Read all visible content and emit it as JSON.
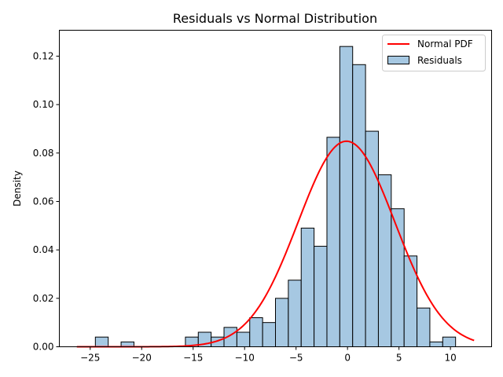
{
  "chart_data": {
    "type": "bar",
    "title": "Residuals vs Normal Distribution",
    "xlabel": "",
    "ylabel": "Density",
    "xlim": [
      -28,
      14
    ],
    "ylim": [
      0,
      0.1307
    ],
    "x_ticks": [
      -25,
      -20,
      -15,
      -10,
      -5,
      0,
      5,
      10
    ],
    "y_ticks": [
      0.0,
      0.02,
      0.04,
      0.06,
      0.08,
      0.1,
      0.12
    ],
    "y_tick_labels": [
      "0.00",
      "0.02",
      "0.04",
      "0.06",
      "0.08",
      "0.10",
      "0.12"
    ],
    "grid": false,
    "legend_position": "top-right",
    "histogram": {
      "name": "Residuals",
      "color": "#a6c8e2",
      "edge_color": "#000000",
      "bin_edges": [
        -24.5,
        -23.25,
        -22.0,
        -20.75,
        -19.5,
        -18.25,
        -17.0,
        -15.75,
        -14.5,
        -13.25,
        -12.0,
        -10.75,
        -9.5,
        -8.25,
        -7.0,
        -5.75,
        -4.5,
        -3.25,
        -2.0,
        -0.75,
        0.5,
        1.75,
        3.0,
        4.25,
        5.5,
        6.75,
        8.0,
        9.25,
        10.5
      ],
      "densities": [
        0.004,
        0.0,
        0.002,
        0.0,
        0.0,
        0.0,
        0.0,
        0.004,
        0.006,
        0.004,
        0.008,
        0.006,
        0.012,
        0.01,
        0.02,
        0.0275,
        0.049,
        0.0415,
        0.0865,
        0.124,
        0.1165,
        0.089,
        0.071,
        0.057,
        0.0375,
        0.016,
        0.002,
        0.004
      ]
    },
    "series": [
      {
        "name": "Normal PDF",
        "type": "line",
        "color": "#ff0000",
        "mean": -0.1,
        "std": 4.7,
        "x_range": [
          -26.3,
          12.3
        ]
      }
    ],
    "legend": [
      {
        "label": "Normal PDF",
        "kind": "line",
        "color": "#ff0000"
      },
      {
        "label": "Residuals",
        "kind": "patch",
        "color": "#a6c8e2"
      }
    ]
  }
}
